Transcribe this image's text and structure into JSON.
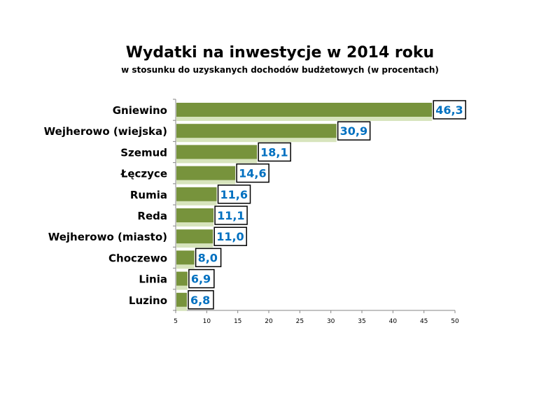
{
  "chart_data": {
    "type": "bar",
    "orientation": "horizontal",
    "title": "Wydatki na inwestycje w 2014 roku",
    "subtitle": "w stosunku do uzyskanych dochodów budżetowych (w procentach)",
    "categories": [
      "Gniewino",
      "Wejherowo (wiejska)",
      "Szemud",
      "Łęczyce",
      "Rumia",
      "Reda",
      "Wejherowo (miasto)",
      "Choczewo",
      "Linia",
      "Luzino"
    ],
    "values": [
      46.3,
      30.9,
      18.1,
      14.6,
      11.6,
      11.1,
      11.0,
      8.0,
      6.9,
      6.8
    ],
    "value_labels": [
      "46,3",
      "30,9",
      "18,1",
      "14,6",
      "11,6",
      "11,1",
      "11,0",
      "8,0",
      "6,9",
      "6,8"
    ],
    "xlim": [
      5,
      50
    ],
    "xticks": [
      5,
      10,
      15,
      20,
      25,
      30,
      35,
      40,
      45,
      50
    ],
    "xlabel": "",
    "ylabel": "",
    "grid": false,
    "colors": {
      "bar": "#77933c",
      "bar_reflection": "#d7e4bd",
      "label": "#0070c0"
    }
  }
}
